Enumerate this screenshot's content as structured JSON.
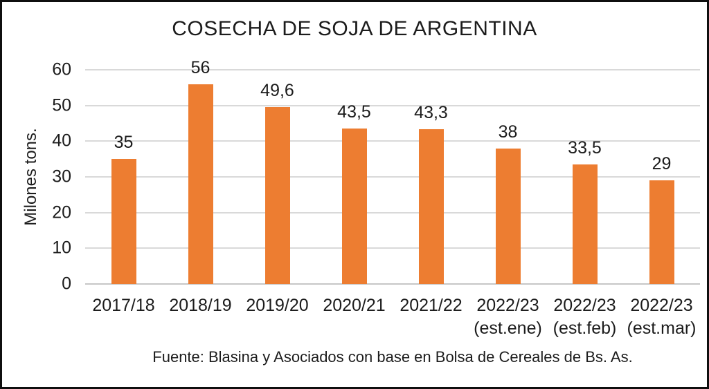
{
  "chart_data": {
    "type": "bar",
    "title": "COSECHA DE SOJA DE ARGENTINA",
    "ylabel": "Milones tons.",
    "source": "Fuente: Blasina y Asociados con base en Bolsa de Cereales de Bs. As.",
    "categories": [
      {
        "label": "2017/18",
        "sub": ""
      },
      {
        "label": "2018/19",
        "sub": ""
      },
      {
        "label": "2019/20",
        "sub": ""
      },
      {
        "label": "2020/21",
        "sub": ""
      },
      {
        "label": "2021/22",
        "sub": ""
      },
      {
        "label": "2022/23",
        "sub": "(est.ene)"
      },
      {
        "label": "2022/23",
        "sub": "(est.feb)"
      },
      {
        "label": "2022/23",
        "sub": "(est.mar)"
      }
    ],
    "values": [
      35,
      56,
      49.6,
      43.5,
      43.3,
      38,
      33.5,
      29
    ],
    "value_labels": [
      "35",
      "56",
      "49,6",
      "43,5",
      "43,3",
      "38",
      "33,5",
      "29"
    ],
    "y_ticks": [
      0,
      10,
      20,
      30,
      40,
      50,
      60
    ],
    "ylim": [
      0,
      60
    ],
    "grid": true,
    "legend": "none",
    "colors": {
      "bar": "#ED7D31",
      "gridline": "#D9D9D9",
      "baseline": "#C6C6C6",
      "text": "#1C1C1C",
      "frame_border": "#0F0F0F",
      "background": "#FFFFFF"
    }
  }
}
